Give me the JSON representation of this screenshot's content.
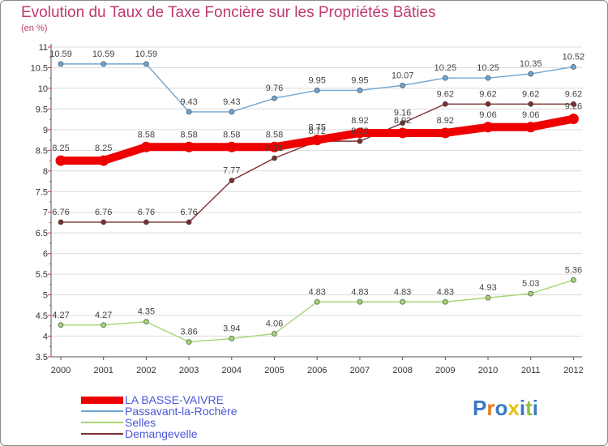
{
  "title": "Evolution du Taux de Taxe Foncière sur les Propriétés Bâties",
  "unit": "(en %)",
  "logo": {
    "letters": [
      "P",
      "r",
      "o",
      "x",
      "i",
      "t",
      "i"
    ],
    "colors": [
      "#3b78c4",
      "#e87b1e",
      "#3b78c4",
      "#e0c316",
      "#3b78c4",
      "#8bc23f",
      "#3b78c4"
    ]
  },
  "chart_data": {
    "type": "line",
    "title": "Evolution du Taux de Taxe Foncière sur les Propriétés Bâties",
    "ylabel": "(en %)",
    "x": [
      "2000",
      "2001",
      "2002",
      "2003",
      "2004",
      "2005",
      "2006",
      "2007",
      "2008",
      "2009",
      "2010",
      "2011",
      "2012"
    ],
    "ylim": [
      3.5,
      11
    ],
    "yticks": [
      "3.5",
      "4",
      "4.5",
      "5",
      "5.5",
      "6",
      "6.5",
      "7",
      "7.5",
      "8",
      "8.5",
      "9",
      "9.5",
      "10",
      "10.5",
      "11"
    ],
    "grid": "horizontal",
    "legend_position": "bottom-left",
    "series": [
      {
        "name": "LA BASSE-VAIVRE",
        "color": "#ee0000",
        "values": [
          8.25,
          8.25,
          8.58,
          8.58,
          8.58,
          8.58,
          8.75,
          8.92,
          8.92,
          8.92,
          9.06,
          9.06,
          9.26
        ],
        "labels": [
          "8.25",
          "8.25",
          "8.58",
          "8.58",
          "8.58",
          "8.58",
          "8.75",
          "8.92",
          "8.92",
          "8.92",
          "9.06",
          "9.06",
          "9.26"
        ]
      },
      {
        "name": "Passavant-la-Rochère",
        "color": "#6fa6d6",
        "values": [
          10.59,
          10.59,
          10.59,
          9.43,
          9.43,
          9.76,
          9.95,
          9.95,
          10.07,
          10.25,
          10.25,
          10.35,
          10.52
        ],
        "labels": [
          "10.59",
          "10.59",
          "10.59",
          "9.43",
          "9.43",
          "9.76",
          "9.95",
          "9.95",
          "10.07",
          "10.25",
          "10.25",
          "10.35",
          "10.52"
        ]
      },
      {
        "name": "Selles",
        "color": "#a5d672",
        "values": [
          4.27,
          4.27,
          4.35,
          3.86,
          3.94,
          4.06,
          4.83,
          4.83,
          4.83,
          4.83,
          4.93,
          5.03,
          5.36
        ],
        "labels": [
          "4.27",
          "4.27",
          "4.35",
          "3.86",
          "3.94",
          "4.06",
          "4.83",
          "4.83",
          "4.83",
          "4.83",
          "4.93",
          "5.03",
          "5.36"
        ]
      },
      {
        "name": "Demangevelle",
        "color": "#7a2f2f",
        "values": [
          6.76,
          6.76,
          6.76,
          6.76,
          7.77,
          8.31,
          8.72,
          8.72,
          9.16,
          9.62,
          9.62,
          9.62,
          9.62
        ],
        "labels": [
          "6.76",
          "6.76",
          "6.76",
          "6.76",
          "7.77",
          "8.31",
          "8.72",
          "8.72",
          "9.16",
          "9.62",
          "9.62",
          "9.62",
          "9.62"
        ]
      }
    ]
  }
}
